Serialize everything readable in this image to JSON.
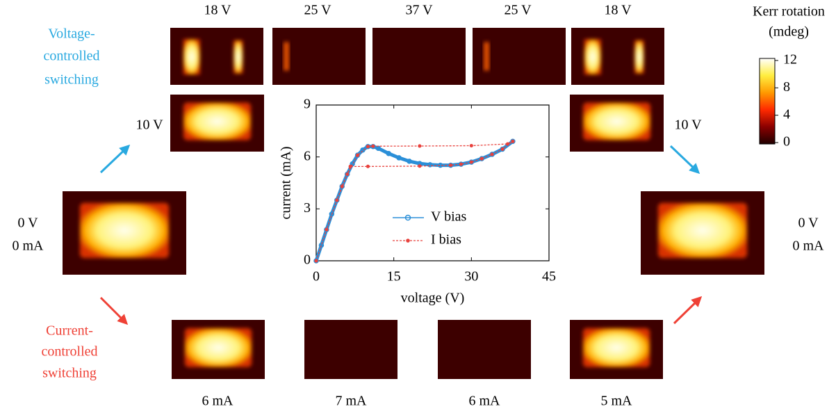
{
  "chart_data": {
    "type": "line",
    "xlabel": "voltage (V)",
    "ylabel": "current (mA)",
    "xlim": [
      0,
      45
    ],
    "xticks": [
      0,
      15,
      30,
      45
    ],
    "ylim": [
      0,
      9
    ],
    "yticks": [
      0,
      3,
      6,
      9
    ],
    "legend": "lower right",
    "grid": false,
    "series": [
      {
        "name": "V bias",
        "color": "#2b8fd8",
        "style": "solid",
        "x": [
          0,
          1,
          2,
          3,
          4,
          5,
          6,
          7,
          8,
          9,
          10,
          11,
          12,
          14,
          16,
          18,
          20,
          22,
          24,
          26,
          28,
          30,
          32,
          34,
          36,
          38
        ],
        "values": [
          0,
          0.9,
          1.8,
          2.7,
          3.5,
          4.3,
          5.0,
          5.6,
          6.1,
          6.4,
          6.6,
          6.6,
          6.5,
          6.2,
          5.95,
          5.75,
          5.62,
          5.55,
          5.52,
          5.52,
          5.58,
          5.7,
          5.9,
          6.15,
          6.45,
          6.9
        ]
      },
      {
        "name": "I bias",
        "color": "#e8413c",
        "style": "dashed",
        "x": [
          0,
          2,
          4,
          6,
          8,
          10,
          11,
          20,
          30,
          37,
          38,
          36,
          34,
          32,
          30,
          28,
          26,
          20,
          10,
          6.6,
          5,
          4,
          2,
          0
        ],
        "values": [
          0,
          1.8,
          3.5,
          5.0,
          6.1,
          6.6,
          6.62,
          6.63,
          6.65,
          6.75,
          6.9,
          6.45,
          6.15,
          5.9,
          5.7,
          5.58,
          5.52,
          5.47,
          5.45,
          5.45,
          4.3,
          3.5,
          1.8,
          0
        ]
      }
    ]
  },
  "colorbar": {
    "title": [
      "Kerr rotation",
      "(mdeg)"
    ],
    "lim": [
      -0.2,
      12.3
    ],
    "ticks": [
      0,
      4,
      8,
      12
    ]
  },
  "top_labels": [
    "18 V",
    "25 V",
    "37 V",
    "25 V",
    "18 V"
  ],
  "side_labels": [
    "10 V",
    "10 V"
  ],
  "zero_labels": {
    "left": [
      "0 V",
      "0 mA"
    ],
    "right": [
      "0 V",
      "0 mA"
    ]
  },
  "bottom_labels": [
    "6 mA",
    "7 mA",
    "6 mA",
    "5 mA"
  ],
  "voltage_caption": [
    "Voltage-",
    "controlled",
    "switching"
  ],
  "current_caption": [
    "Current-",
    "controlled",
    "switching"
  ]
}
